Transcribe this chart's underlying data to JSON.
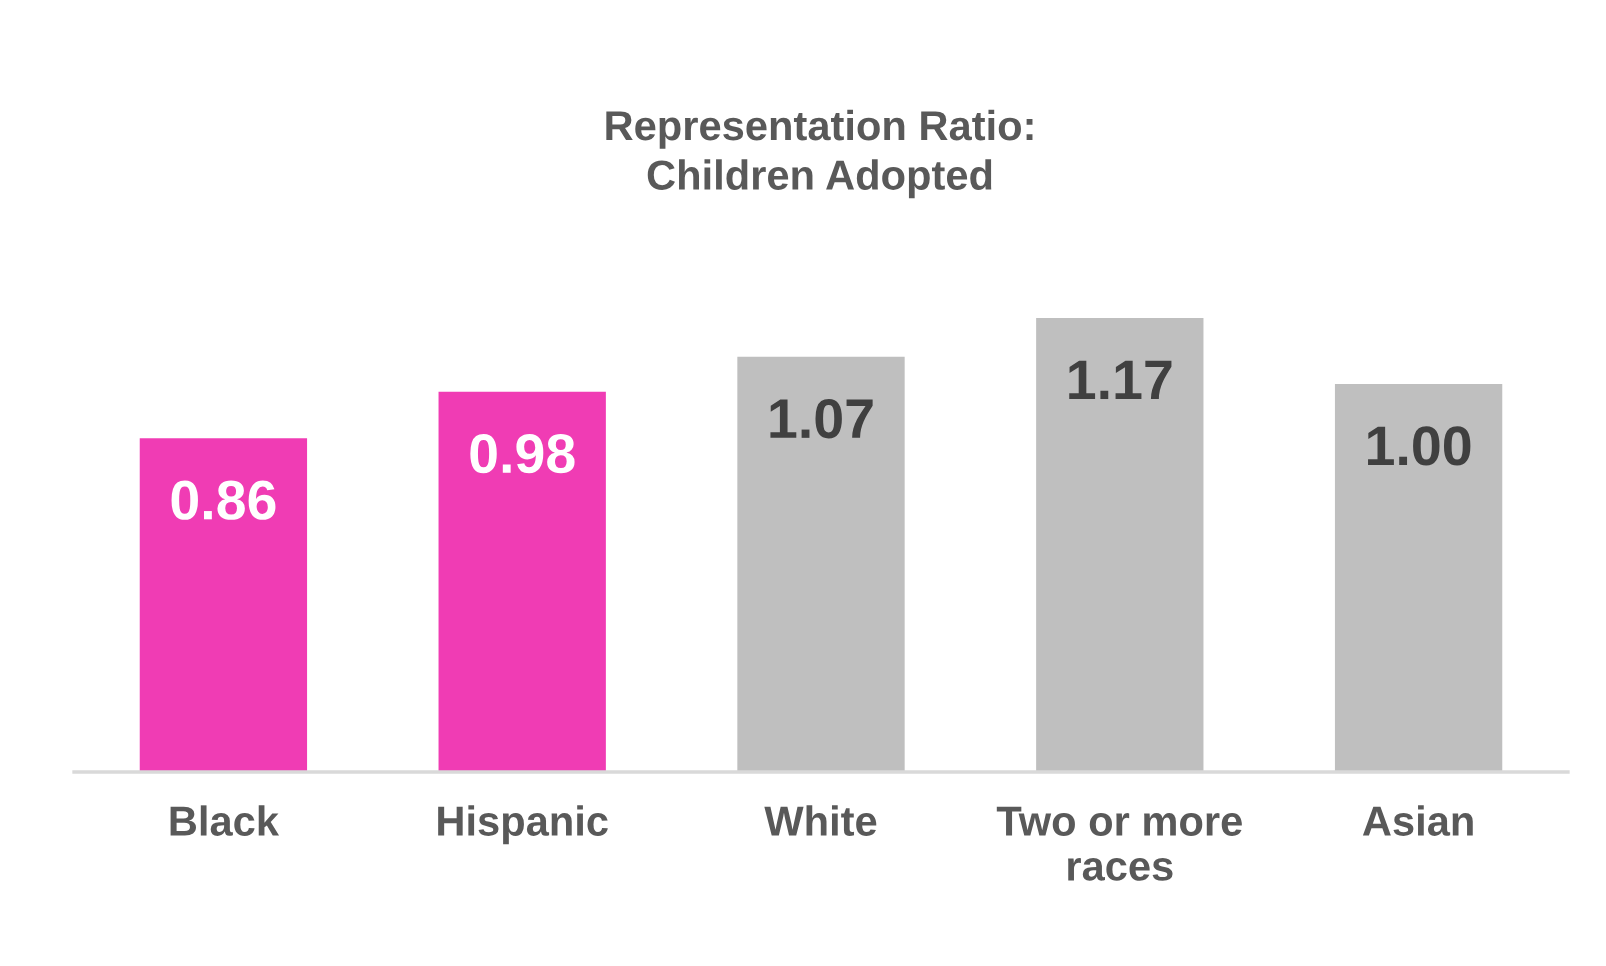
{
  "chart_data": {
    "type": "bar",
    "title": "Representation Ratio:\nChildren Adopted",
    "categories": [
      "Black",
      "Hispanic",
      "White",
      "Two or more\nraces",
      "Asian"
    ],
    "values": [
      0.86,
      0.98,
      1.07,
      1.17,
      1.0
    ],
    "colors": [
      "#f03cb4",
      "#f03cb4",
      "#bfbfbf",
      "#bfbfbf",
      "#bfbfbf"
    ],
    "value_labels": [
      "0.86",
      "0.98",
      "1.07",
      "1.17",
      "1.00"
    ],
    "grid": false,
    "legend": false
  }
}
